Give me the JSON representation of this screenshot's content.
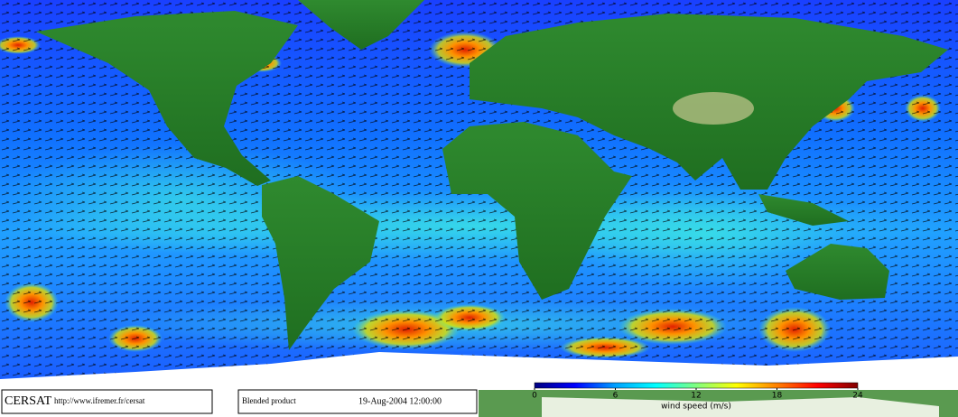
{
  "footer": {
    "logo": "CERSAT",
    "url": "http://www.ifremer.fr/cersat",
    "product": "Blended product",
    "date": "19-Aug-2004 12:00:00"
  },
  "colorbar": {
    "label": "wind speed (m/s)",
    "lim": [
      0,
      24
    ],
    "ticks": [
      0,
      6,
      12,
      18,
      24
    ],
    "colors": [
      "#000080",
      "#0000ff",
      "#00a0ff",
      "#00ffff",
      "#80ff80",
      "#ffff00",
      "#ff8000",
      "#ff0000",
      "#800000"
    ]
  }
}
